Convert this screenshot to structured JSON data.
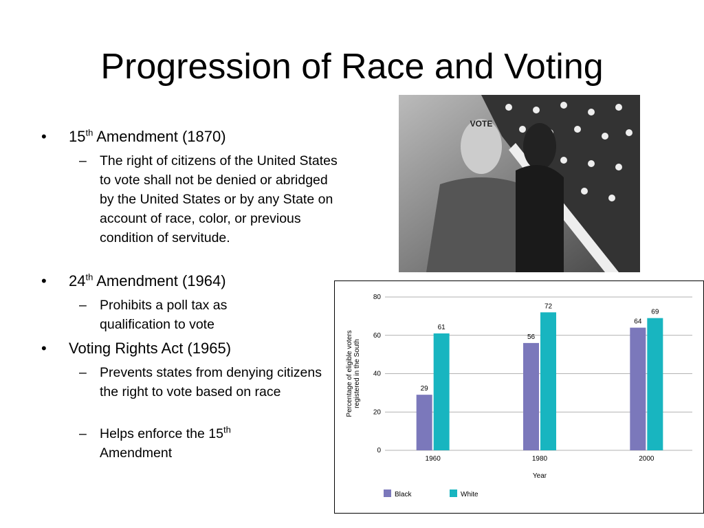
{
  "title": "Progression of Race and Voting",
  "bullets": [
    {
      "pre": "15",
      "sup": "th",
      "post": "Amendment (1870)",
      "subs": [
        {
          "pre": "The right of citizens of the United States to vote shall not be denied or abridged by the United States or by any State on account of race, color, or previous condition of servitude."
        }
      ]
    },
    {
      "pre": "24",
      "sup": "th",
      "post": "Amendment (1964)",
      "subs": [
        {
          "pre": "Prohibits a poll tax as qualification to vote"
        }
      ]
    },
    {
      "pre": "Voting Rights Act (1965)",
      "subs": [
        {
          "pre": "Prevents states from denying citizens the right to vote based on race"
        },
        {
          "pre": "Helps enforce the 15",
          "sup": "th",
          "post": "Amendment"
        }
      ]
    }
  ],
  "photo_text": "VOTE",
  "chart_data": {
    "type": "bar",
    "categories": [
      "1960",
      "1980",
      "2000"
    ],
    "series": [
      {
        "name": "Black",
        "color": "#7b78bb",
        "values": [
          29,
          56,
          64
        ]
      },
      {
        "name": "White",
        "color": "#18b5c0",
        "values": [
          61,
          72,
          69
        ]
      }
    ],
    "ylim": [
      0,
      80
    ],
    "yticks": [
      0,
      20,
      40,
      60,
      80
    ],
    "grid": true,
    "ylabel": [
      "Percentage of eligible voters",
      "registered in the South"
    ],
    "xlabel": "Year",
    "legend": "bottom-left"
  }
}
